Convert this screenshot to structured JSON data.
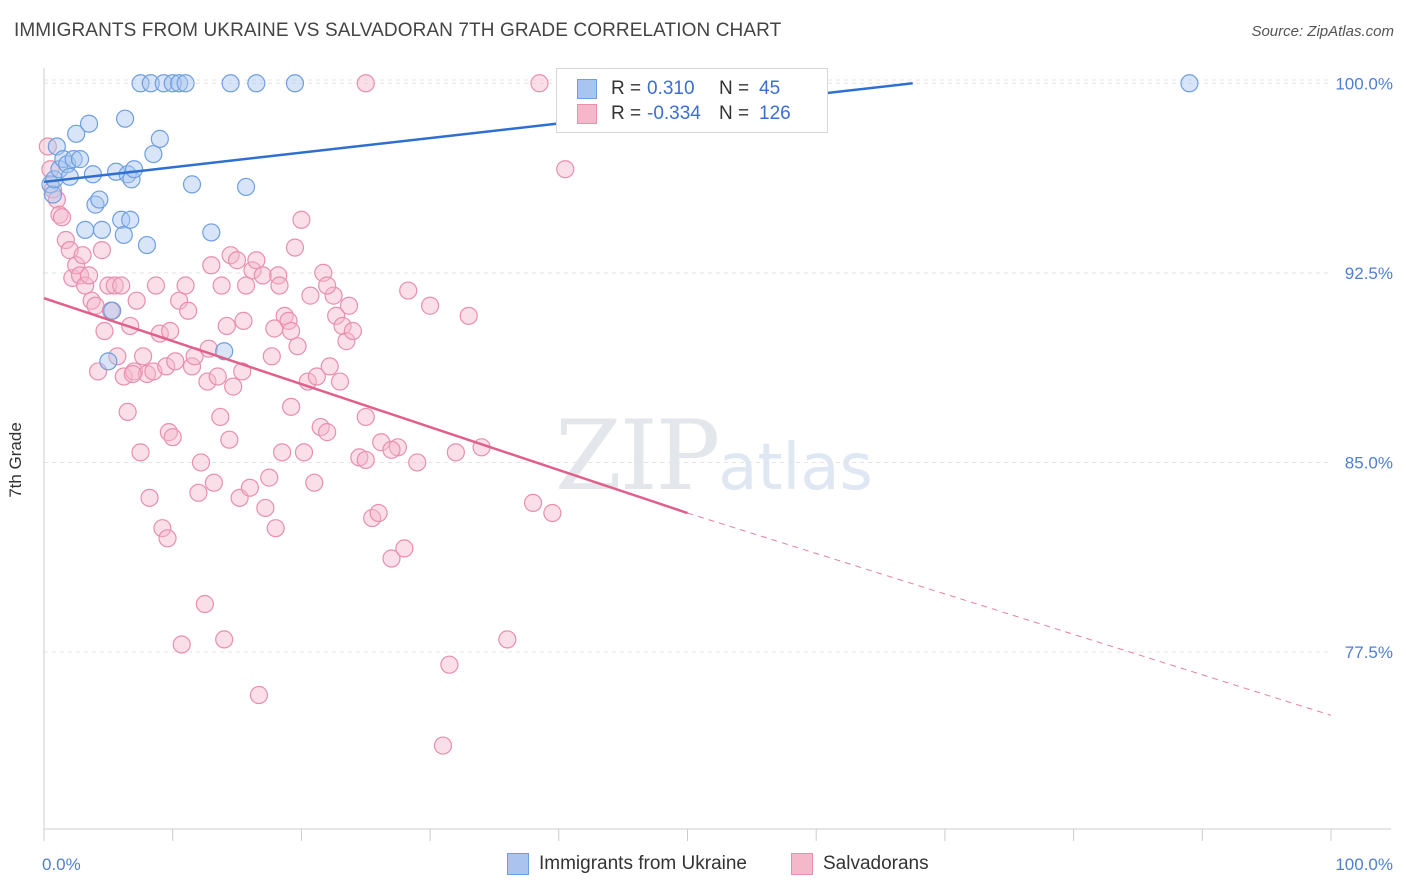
{
  "title": "IMMIGRANTS FROM UKRAINE VS SALVADORAN 7TH GRADE CORRELATION CHART",
  "source": "Source: ZipAtlas.com",
  "watermark": {
    "zip": "ZIP",
    "atlas": "atlas"
  },
  "colors": {
    "blue_fill": "#a9c5ef",
    "blue_stroke": "#6f9fe0",
    "blue_line": "#2f6fd0",
    "pink_fill": "#f5b8cb",
    "pink_stroke": "#e98fab",
    "pink_line": "#e0608a",
    "grid": "#e4e4e4",
    "tick_text": "#4f7fd1"
  },
  "legend": {
    "rows": [
      {
        "r_label": "R =",
        "r_value": "0.310",
        "n_label": "N =",
        "n_value": "45",
        "color": "blue"
      },
      {
        "r_label": "R =",
        "r_value": "-0.334",
        "n_label": "N =",
        "n_value": "126",
        "color": "pink"
      }
    ]
  },
  "bottom_legend": [
    {
      "label": "Immigrants from Ukraine",
      "color": "blue"
    },
    {
      "label": "Salvadorans",
      "color": "pink"
    }
  ],
  "chart_data": {
    "type": "scatter",
    "title": "IMMIGRANTS FROM UKRAINE VS SALVADORAN 7TH GRADE CORRELATION CHART",
    "xlabel": "",
    "ylabel": "7th Grade",
    "xlim": [
      0,
      100
    ],
    "ylim": [
      70.5,
      101
    ],
    "x_tick_labels": [
      "0.0%",
      "100.0%"
    ],
    "y_ticks": [
      77.5,
      85.0,
      92.5,
      100.0
    ],
    "y_tick_labels": [
      "77.5%",
      "85.0%",
      "92.5%",
      "100.0%"
    ],
    "grid": true,
    "series": [
      {
        "name": "Immigrants from Ukraine",
        "color": "blue",
        "r": 0.31,
        "n": 45,
        "trend": {
          "x0": 0,
          "y0": 96.1,
          "x1": 67.5,
          "y1": 100.0
        },
        "points": [
          [
            0.5,
            96.0
          ],
          [
            0.7,
            95.6
          ],
          [
            0.8,
            96.2
          ],
          [
            1.0,
            97.5
          ],
          [
            1.2,
            96.6
          ],
          [
            1.5,
            97.0
          ],
          [
            1.8,
            96.8
          ],
          [
            2.0,
            96.3
          ],
          [
            2.3,
            97.0
          ],
          [
            2.5,
            98.0
          ],
          [
            2.8,
            97.0
          ],
          [
            3.2,
            94.2
          ],
          [
            3.5,
            98.4
          ],
          [
            3.8,
            96.4
          ],
          [
            4.0,
            95.2
          ],
          [
            4.3,
            95.4
          ],
          [
            4.5,
            94.2
          ],
          [
            5.0,
            89.0
          ],
          [
            5.3,
            91.0
          ],
          [
            5.6,
            96.5
          ],
          [
            6.0,
            94.6
          ],
          [
            6.2,
            94.0
          ],
          [
            6.5,
            96.4
          ],
          [
            6.7,
            94.6
          ],
          [
            6.3,
            98.6
          ],
          [
            6.8,
            96.2
          ],
          [
            7.0,
            96.6
          ],
          [
            7.5,
            100.0
          ],
          [
            8.0,
            93.6
          ],
          [
            8.3,
            100.0
          ],
          [
            8.5,
            97.2
          ],
          [
            9.0,
            97.8
          ],
          [
            9.3,
            100.0
          ],
          [
            10.0,
            100.0
          ],
          [
            10.5,
            100.0
          ],
          [
            11.0,
            100.0
          ],
          [
            11.5,
            96.0
          ],
          [
            13.0,
            94.1
          ],
          [
            14.0,
            89.4
          ],
          [
            14.5,
            100.0
          ],
          [
            15.7,
            95.9
          ],
          [
            16.5,
            100.0
          ],
          [
            19.5,
            100.0
          ],
          [
            50.0,
            100.0
          ],
          [
            89.0,
            100.0
          ]
        ]
      },
      {
        "name": "Salvadorans",
        "color": "pink",
        "r": -0.334,
        "n": 126,
        "trend": {
          "x0": 0,
          "y0": 91.5,
          "x1": 50.0,
          "y1": 83.0,
          "dash_x1": 100,
          "dash_y1": 75.0
        },
        "points": [
          [
            0.3,
            97.5
          ],
          [
            0.5,
            96.6
          ],
          [
            0.7,
            95.8
          ],
          [
            1.0,
            95.4
          ],
          [
            1.2,
            94.8
          ],
          [
            1.4,
            94.7
          ],
          [
            1.7,
            93.8
          ],
          [
            2.0,
            93.4
          ],
          [
            2.2,
            92.3
          ],
          [
            2.5,
            92.8
          ],
          [
            2.8,
            92.4
          ],
          [
            3.0,
            93.2
          ],
          [
            3.2,
            92.0
          ],
          [
            3.5,
            92.4
          ],
          [
            3.7,
            91.4
          ],
          [
            4.0,
            91.2
          ],
          [
            4.2,
            88.6
          ],
          [
            4.5,
            93.4
          ],
          [
            4.7,
            90.2
          ],
          [
            5.0,
            92.0
          ],
          [
            5.2,
            91.0
          ],
          [
            5.5,
            92.0
          ],
          [
            5.7,
            89.2
          ],
          [
            6.0,
            92.0
          ],
          [
            6.2,
            88.4
          ],
          [
            6.5,
            87.0
          ],
          [
            6.7,
            90.4
          ],
          [
            7.0,
            88.6
          ],
          [
            7.2,
            91.4
          ],
          [
            7.5,
            85.4
          ],
          [
            7.7,
            89.2
          ],
          [
            8.0,
            88.5
          ],
          [
            8.2,
            83.6
          ],
          [
            8.5,
            88.6
          ],
          [
            8.7,
            92.0
          ],
          [
            9.0,
            90.1
          ],
          [
            9.2,
            82.4
          ],
          [
            9.5,
            88.8
          ],
          [
            9.7,
            86.2
          ],
          [
            10.0,
            86.0
          ],
          [
            10.2,
            89.0
          ],
          [
            10.5,
            91.4
          ],
          [
            10.7,
            77.8
          ],
          [
            11.0,
            92.0
          ],
          [
            11.2,
            91.0
          ],
          [
            11.5,
            88.8
          ],
          [
            11.7,
            89.2
          ],
          [
            12.0,
            83.8
          ],
          [
            12.2,
            85.0
          ],
          [
            12.5,
            79.4
          ],
          [
            12.7,
            88.2
          ],
          [
            13.0,
            92.8
          ],
          [
            13.2,
            84.2
          ],
          [
            13.5,
            88.4
          ],
          [
            13.7,
            86.8
          ],
          [
            14.0,
            78.0
          ],
          [
            14.2,
            90.4
          ],
          [
            14.5,
            93.2
          ],
          [
            14.7,
            88.0
          ],
          [
            15.0,
            93.0
          ],
          [
            15.2,
            83.6
          ],
          [
            15.5,
            90.6
          ],
          [
            15.7,
            92.0
          ],
          [
            16.0,
            84.0
          ],
          [
            16.2,
            92.6
          ],
          [
            16.5,
            93.0
          ],
          [
            16.7,
            75.8
          ],
          [
            17.0,
            92.4
          ],
          [
            17.2,
            83.2
          ],
          [
            17.5,
            84.4
          ],
          [
            17.7,
            89.2
          ],
          [
            18.0,
            82.4
          ],
          [
            18.2,
            92.4
          ],
          [
            18.5,
            85.4
          ],
          [
            18.7,
            90.8
          ],
          [
            19.0,
            90.6
          ],
          [
            19.2,
            90.2
          ],
          [
            19.5,
            93.5
          ],
          [
            19.7,
            89.6
          ],
          [
            20.0,
            94.6
          ],
          [
            20.2,
            85.4
          ],
          [
            20.5,
            88.2
          ],
          [
            20.7,
            91.6
          ],
          [
            21.0,
            84.2
          ],
          [
            21.2,
            88.4
          ],
          [
            21.5,
            86.4
          ],
          [
            21.7,
            92.5
          ],
          [
            22.0,
            86.2
          ],
          [
            22.2,
            88.8
          ],
          [
            22.5,
            91.6
          ],
          [
            22.7,
            90.8
          ],
          [
            23.0,
            88.2
          ],
          [
            23.2,
            90.4
          ],
          [
            23.5,
            89.8
          ],
          [
            23.7,
            91.2
          ],
          [
            24.0,
            90.2
          ],
          [
            24.5,
            85.2
          ],
          [
            25.0,
            85.1
          ],
          [
            25.5,
            82.8
          ],
          [
            26.0,
            83.0
          ],
          [
            26.2,
            85.8
          ],
          [
            27.0,
            81.2
          ],
          [
            27.5,
            85.6
          ],
          [
            28.0,
            81.6
          ],
          [
            28.3,
            91.8
          ],
          [
            29.0,
            85.0
          ],
          [
            30.0,
            91.2
          ],
          [
            31.0,
            73.8
          ],
          [
            31.5,
            77.0
          ],
          [
            32.0,
            85.4
          ],
          [
            33.0,
            90.8
          ],
          [
            34.0,
            85.6
          ],
          [
            36.0,
            78.0
          ],
          [
            38.0,
            83.4
          ],
          [
            39.5,
            83.0
          ],
          [
            40.5,
            96.6
          ],
          [
            25.0,
            86.8
          ],
          [
            13.8,
            92.0
          ],
          [
            9.8,
            90.2
          ],
          [
            27.0,
            85.5
          ],
          [
            18.3,
            92.0
          ],
          [
            12.8,
            89.5
          ],
          [
            15.4,
            88.6
          ],
          [
            17.9,
            90.3
          ],
          [
            9.6,
            82.0
          ],
          [
            25.0,
            100.0
          ],
          [
            38.5,
            100.0
          ],
          [
            22.0,
            92.0
          ],
          [
            14.4,
            85.9
          ],
          [
            19.2,
            87.2
          ],
          [
            6.9,
            88.5
          ]
        ]
      }
    ]
  }
}
